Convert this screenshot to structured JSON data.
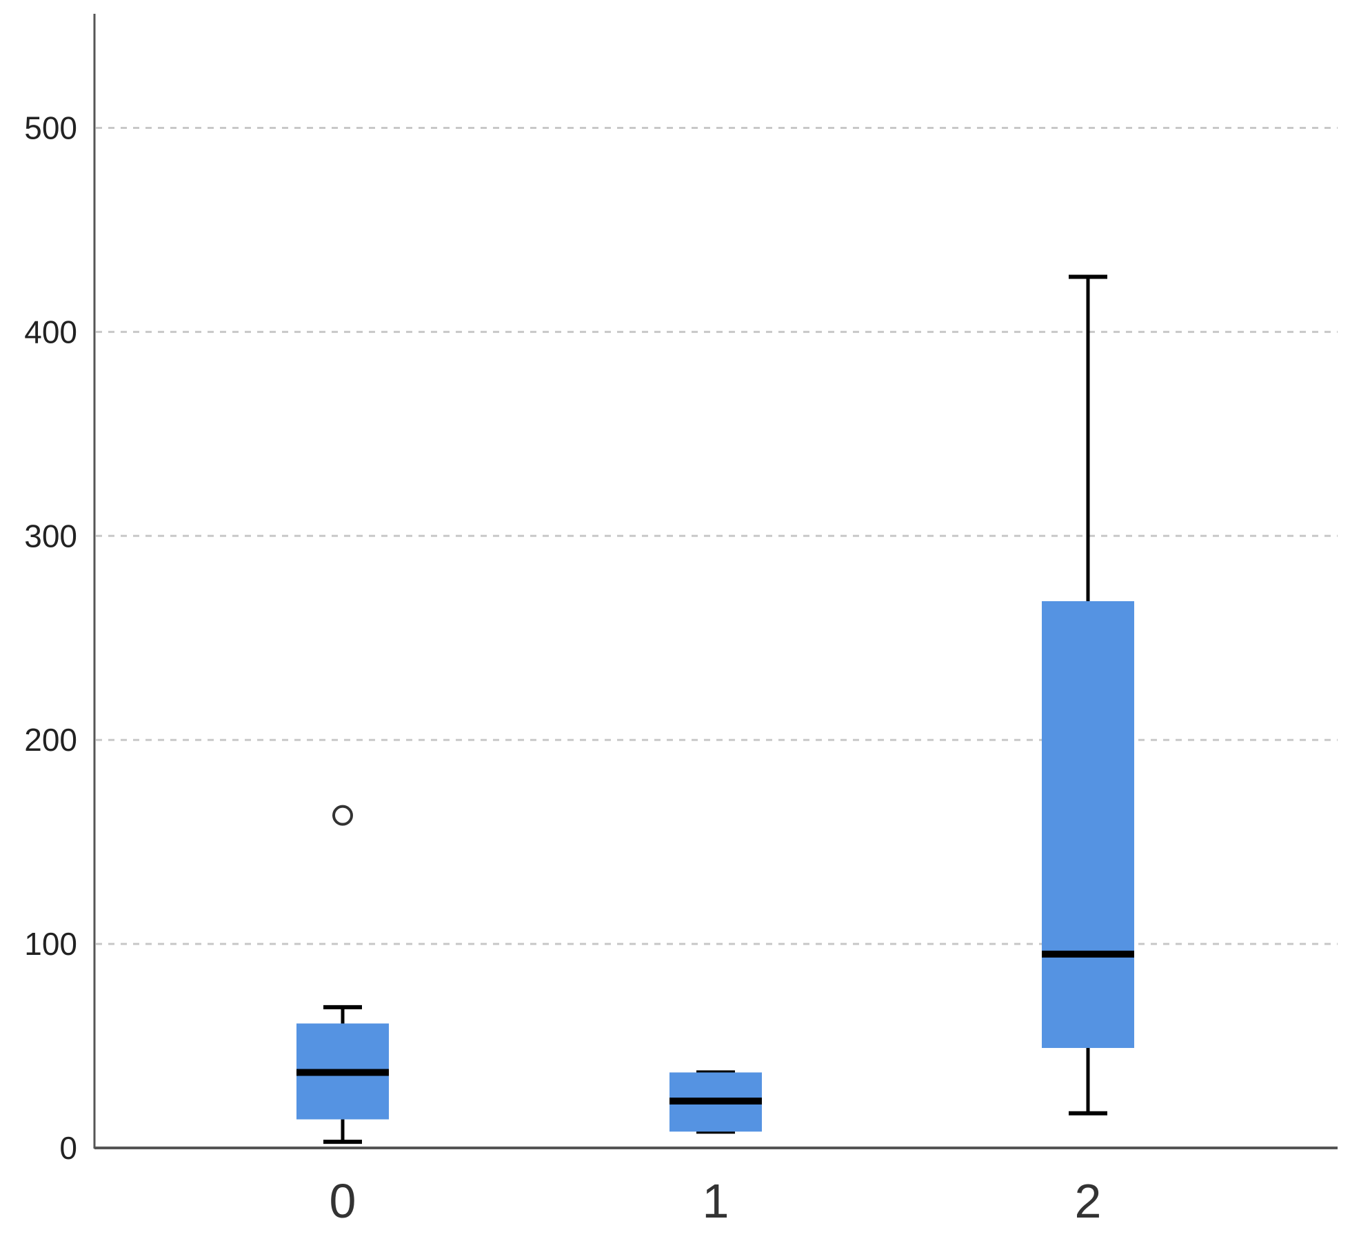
{
  "chart_data": {
    "type": "box",
    "title": "",
    "xlabel": "",
    "ylabel": "",
    "ylim": [
      0,
      555
    ],
    "yticks": [
      0,
      100,
      200,
      300,
      400,
      500
    ],
    "ytick_labels": [
      "0",
      "100",
      "200",
      "300",
      "400",
      "500"
    ],
    "grid": "horizontal-dashed",
    "categories": [
      "0",
      "1",
      "2"
    ],
    "boxes": [
      {
        "category": "0",
        "whisker_low": 3,
        "q1": 14,
        "median": 37,
        "q3": 61,
        "whisker_high": 69,
        "outliers": [
          163
        ]
      },
      {
        "category": "1",
        "whisker_low": 8,
        "q1": 8,
        "median": 23,
        "q3": 37,
        "whisker_high": 37,
        "outliers": []
      },
      {
        "category": "2",
        "whisker_low": 17,
        "q1": 49,
        "median": 95,
        "q3": 268,
        "whisker_high": 427,
        "outliers": []
      }
    ],
    "colors": {
      "box_fill": "#5593e2",
      "median": "#000000",
      "whisker": "#000000",
      "grid": "#c8c8c8",
      "axis": "#555555"
    }
  }
}
